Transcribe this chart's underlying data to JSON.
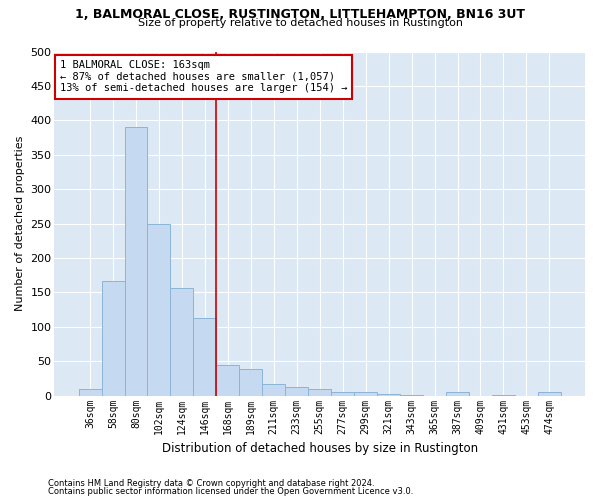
{
  "title1": "1, BALMORAL CLOSE, RUSTINGTON, LITTLEHAMPTON, BN16 3UT",
  "title2": "Size of property relative to detached houses in Rustington",
  "xlabel": "Distribution of detached houses by size in Rustington",
  "ylabel": "Number of detached properties",
  "bar_color": "#c5d9f0",
  "bar_edge_color": "#8ab4d8",
  "background_color": "#dce9f5",
  "grid_color": "#ffffff",
  "categories": [
    "36sqm",
    "58sqm",
    "80sqm",
    "102sqm",
    "124sqm",
    "146sqm",
    "168sqm",
    "189sqm",
    "211sqm",
    "233sqm",
    "255sqm",
    "277sqm",
    "299sqm",
    "321sqm",
    "343sqm",
    "365sqm",
    "387sqm",
    "409sqm",
    "431sqm",
    "453sqm",
    "474sqm"
  ],
  "values": [
    10,
    167,
    390,
    250,
    157,
    113,
    44,
    39,
    17,
    13,
    9,
    6,
    5,
    3,
    1,
    0,
    5,
    0,
    1,
    0,
    5
  ],
  "ylim": [
    0,
    500
  ],
  "yticks": [
    0,
    50,
    100,
    150,
    200,
    250,
    300,
    350,
    400,
    450,
    500
  ],
  "vline_x": 5.5,
  "vline_color": "#cc0000",
  "annotation_text": "1 BALMORAL CLOSE: 163sqm\n← 87% of detached houses are smaller (1,057)\n13% of semi-detached houses are larger (154) →",
  "annotation_box_color": "#ffffff",
  "annotation_box_edge_color": "#cc0000",
  "footnote1": "Contains HM Land Registry data © Crown copyright and database right 2024.",
  "footnote2": "Contains public sector information licensed under the Open Government Licence v3.0."
}
